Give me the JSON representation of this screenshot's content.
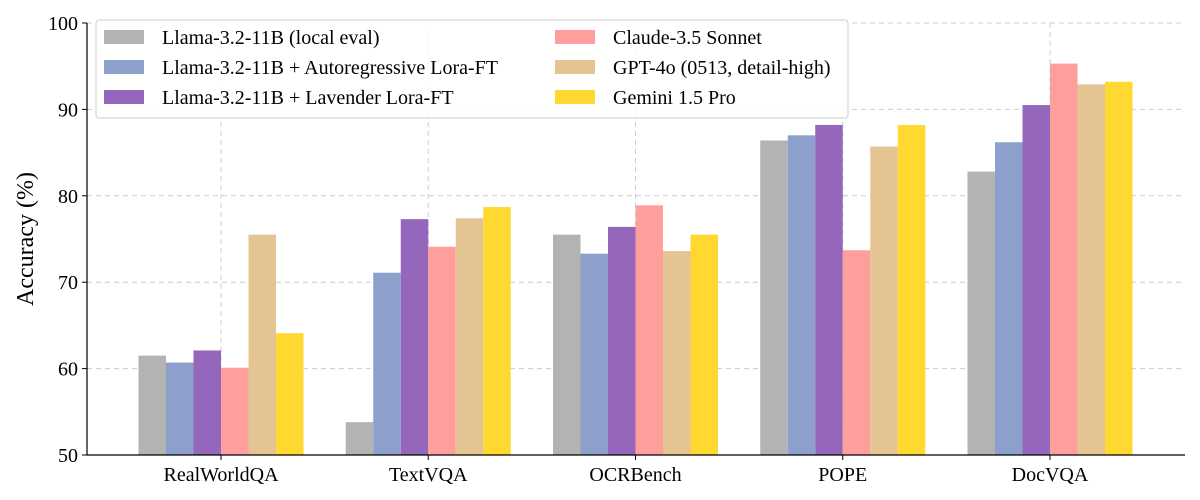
{
  "chart_data": {
    "type": "bar",
    "title": "",
    "xlabel": "",
    "ylabel": "Accuracy (%)",
    "ylim": [
      50,
      100
    ],
    "yticks": [
      50,
      60,
      70,
      80,
      90,
      100
    ],
    "grid": true,
    "legend_position": "top-left",
    "categories": [
      "RealWorldQA",
      "TextVQA",
      "OCRBench",
      "POPE",
      "DocVQA"
    ],
    "series": [
      {
        "name": "Llama-3.2-11B (local eval)",
        "color": "#b3b3b3",
        "values": [
          61.5,
          53.8,
          75.5,
          86.4,
          82.8
        ]
      },
      {
        "name": "Llama-3.2-11B + Autoregressive Lora-FT",
        "color": "#8da0cb",
        "values": [
          60.7,
          71.1,
          73.3,
          87.0,
          86.2
        ]
      },
      {
        "name": "Llama-3.2-11B + Lavender Lora-FT",
        "color": "#9467bd",
        "values": [
          62.1,
          77.3,
          76.4,
          88.2,
          90.5
        ]
      },
      {
        "name": "Claude-3.5 Sonnet",
        "color": "#ff9f9b",
        "values": [
          60.1,
          74.1,
          78.9,
          73.7,
          95.3
        ]
      },
      {
        "name": "GPT-4o (0513, detail-high)",
        "color": "#e5c494",
        "values": [
          75.5,
          77.4,
          73.6,
          85.7,
          92.9
        ]
      },
      {
        "name": "Gemini 1.5 Pro",
        "color": "#ffd92f",
        "values": [
          64.1,
          78.7,
          75.5,
          88.2,
          93.2
        ]
      }
    ]
  }
}
